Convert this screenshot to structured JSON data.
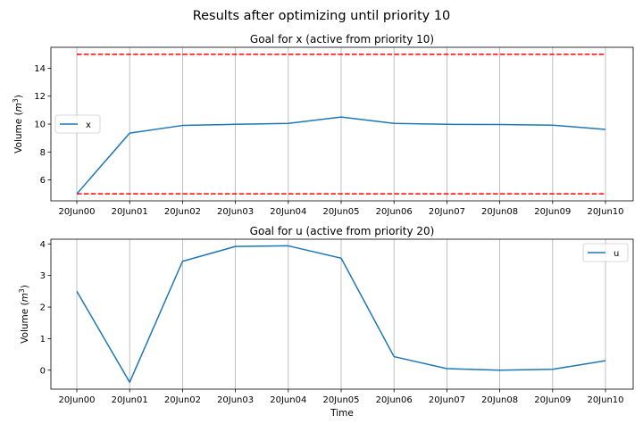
{
  "figure": {
    "suptitle": "Results after optimizing until priority 10"
  },
  "chart_data": [
    {
      "type": "line",
      "title": "Goal for x (active from priority 10)",
      "xlabel": "",
      "ylabel": "Volume (m³)",
      "ylabel_main": "Volume (",
      "ylabel_unit": "m",
      "ylabel_sup": "3",
      "ylabel_close": ")",
      "categories": [
        "20Jun00",
        "20Jun01",
        "20Jun02",
        "20Jun03",
        "20Jun04",
        "20Jun05",
        "20Jun06",
        "20Jun07",
        "20Jun08",
        "20Jun09",
        "20Jun10"
      ],
      "yticks": [
        6,
        8,
        10,
        12,
        14
      ],
      "ylim": [
        4.5,
        15.5
      ],
      "grid": "x",
      "legend_position": "center-left",
      "series": [
        {
          "name": "x",
          "color": "#1f77b4",
          "values": [
            5.0,
            9.35,
            9.9,
            9.98,
            10.05,
            10.5,
            10.05,
            9.98,
            9.97,
            9.92,
            9.62
          ]
        }
      ],
      "reference_lines": [
        {
          "value": 15,
          "color": "#ff0000",
          "style": "dashed"
        },
        {
          "value": 5,
          "color": "#ff0000",
          "style": "dashed"
        }
      ]
    },
    {
      "type": "line",
      "title": "Goal for u (active from priority 20)",
      "xlabel": "Time",
      "ylabel": "Volume (m³)",
      "ylabel_main": "Volume (",
      "ylabel_unit": "m",
      "ylabel_sup": "3",
      "ylabel_close": ")",
      "categories": [
        "20Jun00",
        "20Jun01",
        "20Jun02",
        "20Jun03",
        "20Jun04",
        "20Jun05",
        "20Jun06",
        "20Jun07",
        "20Jun08",
        "20Jun09",
        "20Jun10"
      ],
      "yticks": [
        0,
        1,
        2,
        3,
        4
      ],
      "ylim": [
        -0.6,
        4.15
      ],
      "grid": "x",
      "legend_position": "top-right",
      "series": [
        {
          "name": "u",
          "color": "#1f77b4",
          "values": [
            2.5,
            -0.38,
            3.45,
            3.92,
            3.94,
            3.55,
            0.43,
            0.05,
            0.0,
            0.03,
            0.3
          ]
        }
      ],
      "reference_lines": []
    }
  ]
}
